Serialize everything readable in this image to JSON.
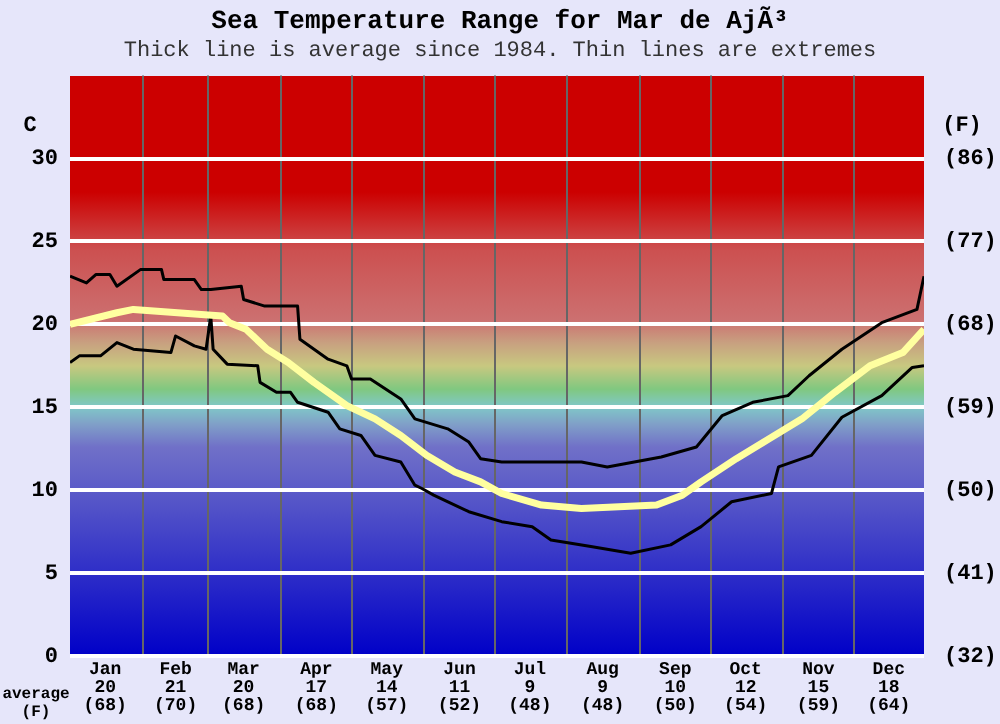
{
  "chart_data": {
    "type": "line",
    "title": "Sea Temperature Range for Mar de AjÃ³",
    "subtitle": "Thick line is average since 1984. Thin lines are extremes",
    "ylabel": "C",
    "y2label": "(F)",
    "annotations": [
      "average\n(F)"
    ],
    "xlim": [
      "--01-01",
      "--12-31"
    ],
    "xticks": [
      {
        "value": "--01-16",
        "label": "Jan\n20\n(68)"
      },
      {
        "value": "--02-01",
        "label": null
      },
      {
        "value": "--02-15",
        "label": "Feb\n21\n(70)"
      },
      {
        "value": "--03-01",
        "label": null
      },
      {
        "value": "--03-16",
        "label": "Mar\n20\n(68)"
      },
      {
        "value": "--04-01",
        "label": null
      },
      {
        "value": "--04-16",
        "label": "Apr\n17\n(68)"
      },
      {
        "value": "--05-01",
        "label": null
      },
      {
        "value": "--05-16",
        "label": "May\n14\n(57)"
      },
      {
        "value": "--06-01",
        "label": null
      },
      {
        "value": "--06-16",
        "label": "Jun\n11\n(52)"
      },
      {
        "value": "--07-01",
        "label": null
      },
      {
        "value": "--07-16",
        "label": "Jul\n9\n(48)"
      },
      {
        "value": "--08-01",
        "label": null
      },
      {
        "value": "--08-16",
        "label": "Aug\n9\n(48)"
      },
      {
        "value": "--09-01",
        "label": null
      },
      {
        "value": "--09-16",
        "label": "Sep\n10\n(50)"
      },
      {
        "value": "--10-01",
        "label": null
      },
      {
        "value": "--10-16",
        "label": "Oct\n12\n(54)"
      },
      {
        "value": "--11-01",
        "label": null
      },
      {
        "value": "--11-16",
        "label": "Nov\n15\n(59)"
      },
      {
        "value": "--12-01",
        "label": null
      },
      {
        "value": "--12-16",
        "label": "Dec\n18\n(64)"
      }
    ],
    "ylim": [
      0,
      35
    ],
    "yticks": [
      0,
      5,
      10,
      15,
      20,
      25,
      30
    ],
    "y2lim": [
      32,
      95
    ],
    "y2ticks": [
      {
        "value": 32,
        "label": "(32)"
      },
      {
        "value": 41,
        "label": "(41)"
      },
      {
        "value": 50,
        "label": "(50)"
      },
      {
        "value": 59,
        "label": "(59)"
      },
      {
        "value": 68,
        "label": "(68)"
      },
      {
        "value": 77,
        "label": "(77)"
      },
      {
        "value": 86,
        "label": "(86)"
      }
    ],
    "grid": true,
    "legend": false,
    "marker": "none",
    "line_style": "solid",
    "series": [
      {
        "color": "#ffffa0",
        "x": [
          "--01-01",
          "--01-21",
          "--01-28",
          "--02-26",
          "--03-07",
          "--03-10",
          "--03-17",
          "--03-26",
          "--04-04",
          "--04-15",
          "--04-29",
          "--05-11",
          "--05-22",
          "--06-02",
          "--06-14",
          "--06-25",
          "--07-04",
          "--07-21",
          "--08-07",
          "--09-08",
          "--09-19",
          "--09-27",
          "--10-12",
          "--10-26",
          "--11-09",
          "--11-23",
          "--12-08",
          "--12-22",
          "--12-31"
        ],
        "values": [
          20.0,
          20.7,
          20.9,
          20.6,
          20.5,
          20.1,
          19.7,
          18.5,
          17.7,
          16.5,
          15.1,
          14.3,
          13.3,
          12.1,
          11.1,
          10.5,
          9.8,
          9.1,
          8.9,
          9.1,
          9.7,
          10.5,
          11.9,
          13.1,
          14.3,
          15.9,
          17.5,
          18.3,
          19.7
        ]
      },
      {
        "color": "#000000",
        "x": [
          "--01-01",
          "--01-08",
          "--01-12",
          "--01-18",
          "--01-21",
          "--01-31",
          "--02-09",
          "--02-10",
          "--02-23",
          "--02-26",
          "--03-02",
          "--03-15",
          "--03-16",
          "--03-25",
          "--04-08",
          "--04-09",
          "--04-15",
          "--04-21",
          "--04-29",
          "--05-01",
          "--05-09",
          "--05-22",
          "--05-28",
          "--06-11",
          "--06-20",
          "--06-25",
          "--07-04",
          "--08-07",
          "--08-18",
          "--09-10",
          "--09-25",
          "--10-06",
          "--10-19",
          "--11-03",
          "--11-12",
          "--11-26",
          "--12-13",
          "--12-28",
          "--12-31"
        ],
        "values": [
          22.9,
          22.5,
          23.0,
          23.0,
          22.3,
          23.3,
          23.3,
          22.7,
          22.7,
          22.1,
          22.1,
          22.3,
          21.5,
          21.1,
          21.1,
          19.1,
          18.5,
          17.9,
          17.5,
          16.7,
          16.7,
          15.5,
          14.3,
          13.7,
          12.9,
          11.9,
          11.7,
          11.7,
          11.4,
          12.0,
          12.6,
          14.5,
          15.3,
          15.7,
          16.9,
          18.5,
          20.1,
          20.9,
          22.9
        ]
      },
      {
        "color": "#000000",
        "x": [
          "--01-01",
          "--01-05",
          "--01-14",
          "--01-21",
          "--01-28",
          "--02-13",
          "--02-15",
          "--02-23",
          "--02-28",
          "--03-02",
          "--03-03",
          "--03-09",
          "--03-22",
          "--03-23",
          "--03-30",
          "--04-05",
          "--04-08",
          "--04-21",
          "--04-26",
          "--05-05",
          "--05-11",
          "--05-22",
          "--05-28",
          "--05-31",
          "--06-05",
          "--06-20",
          "--07-04",
          "--07-17",
          "--07-25",
          "--08-11",
          "--08-28",
          "--09-14",
          "--09-27",
          "--10-10",
          "--10-27",
          "--10-30",
          "--11-13",
          "--11-26",
          "--12-13",
          "--12-26",
          "--12-31"
        ],
        "values": [
          17.7,
          18.1,
          18.1,
          18.9,
          18.5,
          18.3,
          19.3,
          18.7,
          18.5,
          20.5,
          18.5,
          17.6,
          17.5,
          16.5,
          15.9,
          15.9,
          15.3,
          14.7,
          13.7,
          13.3,
          12.1,
          11.7,
          10.3,
          10.1,
          9.7,
          8.7,
          8.1,
          7.8,
          7.0,
          6.6,
          6.2,
          6.7,
          7.8,
          9.3,
          9.8,
          11.4,
          12.1,
          14.4,
          15.7,
          17.4,
          17.5
        ]
      }
    ]
  }
}
